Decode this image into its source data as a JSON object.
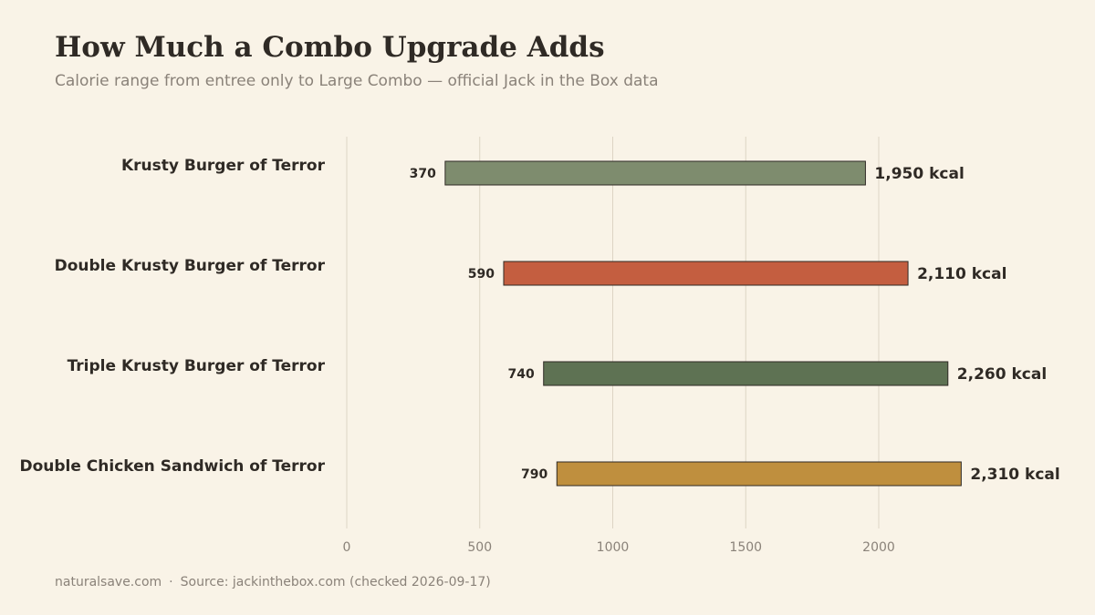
{
  "title": "How Much a Combo Upgrade Adds",
  "subtitle": "Calorie range from entree only to Large Combo — official Jack in the Box data",
  "footer": {
    "site": "naturalsave.com",
    "separator": "·",
    "source": "Source: jackinthebox.com (checked 2026-09-17)"
  },
  "chart_data": {
    "type": "bar",
    "orientation": "horizontal",
    "categories": [
      "Krusty Burger of Terror",
      "Double Krusty Burger of Terror",
      "Triple Krusty Burger of Terror",
      "Double Chicken Sandwich of Terror"
    ],
    "series": [
      {
        "values_start": [
          370,
          590,
          740,
          790
        ],
        "values_end": [
          1950,
          2110,
          2260,
          2310
        ]
      }
    ],
    "start_labels": [
      "370",
      "590",
      "740",
      "790"
    ],
    "end_labels": [
      "1,950 kcal",
      "2,110 kcal",
      "2,260 kcal",
      "2,310 kcal"
    ],
    "bar_colors": [
      "#7e8c6e",
      "#c45e40",
      "#5e7253",
      "#bf8f3e"
    ],
    "xlim": [
      0,
      2500
    ],
    "xticks": [
      0,
      500,
      1000,
      1500,
      2000
    ],
    "xtick_labels": [
      "0",
      "500",
      "1000",
      "1500",
      "2000"
    ],
    "grid": true,
    "legend": "none"
  }
}
